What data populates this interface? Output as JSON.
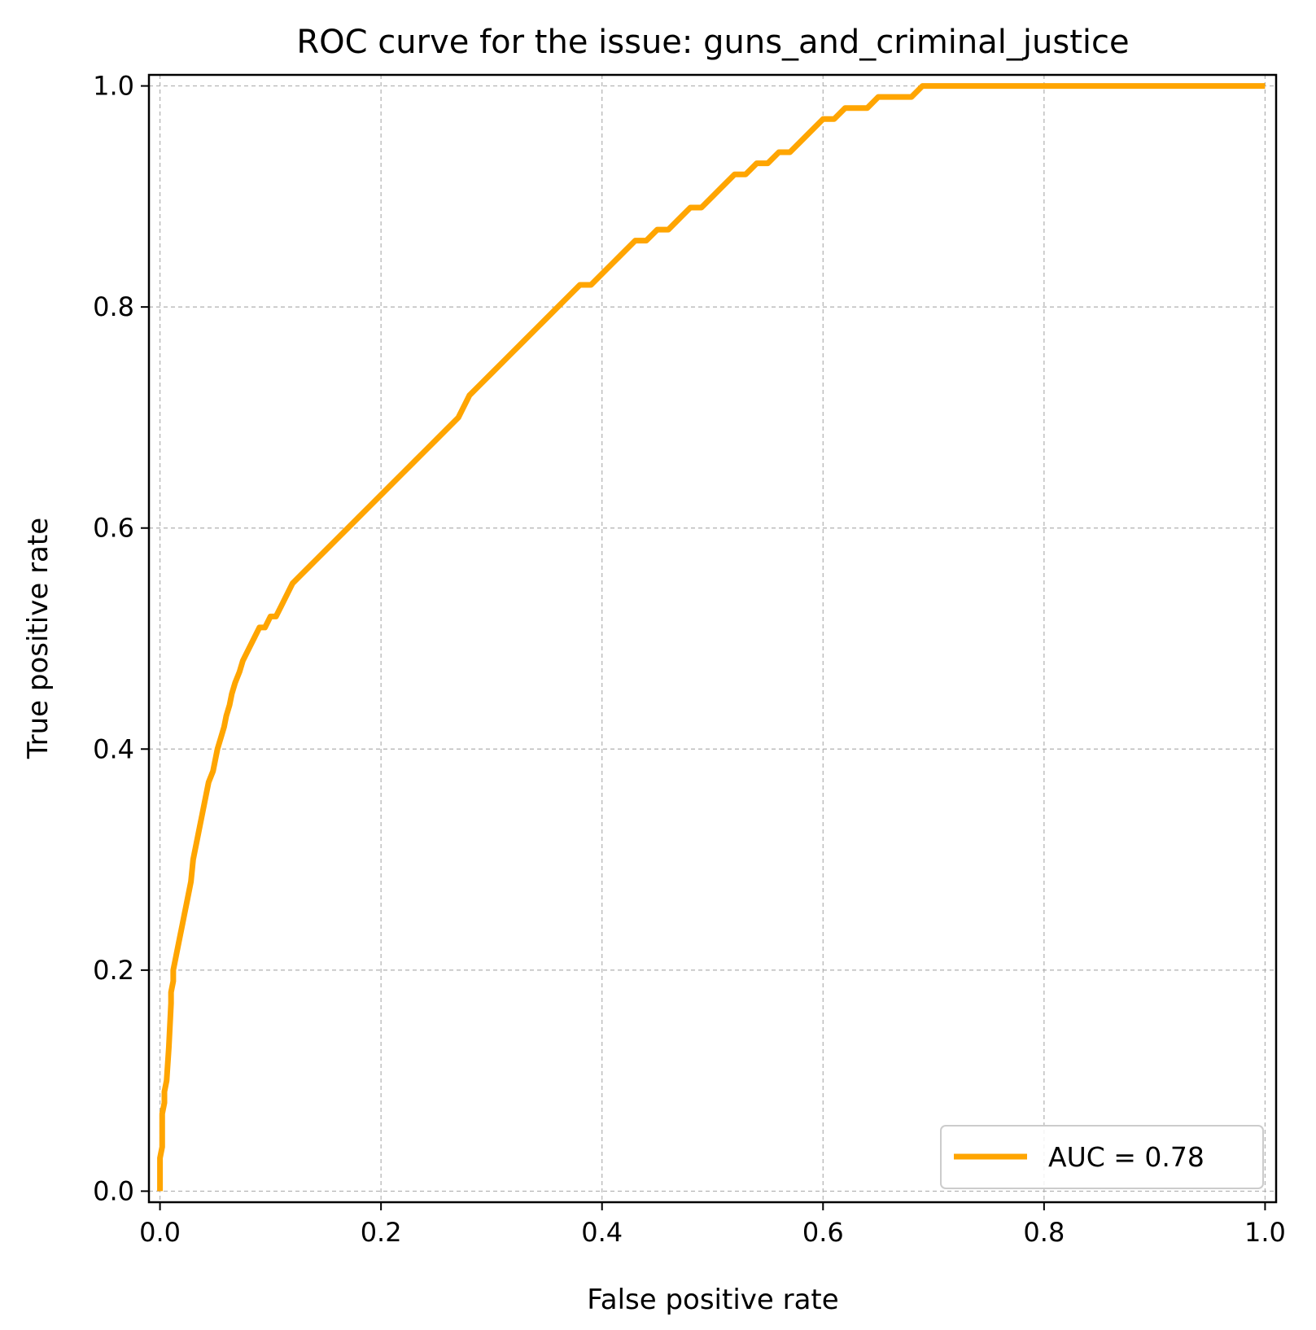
{
  "chart_data": {
    "type": "line",
    "title": "ROC curve for the issue: guns_and_criminal_justice",
    "xlabel": "False positive rate",
    "ylabel": "True positive rate",
    "xlim": [
      -0.01,
      1.01
    ],
    "ylim": [
      -0.01,
      1.01
    ],
    "xticks": [
      0.0,
      0.2,
      0.4,
      0.6,
      0.8,
      1.0
    ],
    "yticks": [
      0.0,
      0.2,
      0.4,
      0.6,
      0.8,
      1.0
    ],
    "xtick_labels": [
      "0.0",
      "0.2",
      "0.4",
      "0.6",
      "0.8",
      "1.0"
    ],
    "ytick_labels": [
      "0.0",
      "0.2",
      "0.4",
      "0.6",
      "0.8",
      "1.0"
    ],
    "grid": true,
    "legend_position": "lower right",
    "series": [
      {
        "name": "AUC = 0.78",
        "color": "#ffa500",
        "x": [
          0.0,
          0.0,
          0.002,
          0.002,
          0.004,
          0.004,
          0.006,
          0.008,
          0.01,
          0.01,
          0.012,
          0.012,
          0.014,
          0.016,
          0.018,
          0.02,
          0.022,
          0.024,
          0.028,
          0.03,
          0.034,
          0.036,
          0.038,
          0.04,
          0.042,
          0.044,
          0.048,
          0.05,
          0.052,
          0.055,
          0.058,
          0.06,
          0.063,
          0.065,
          0.068,
          0.072,
          0.075,
          0.08,
          0.085,
          0.09,
          0.095,
          0.1,
          0.105,
          0.11,
          0.115,
          0.12,
          0.13,
          0.14,
          0.15,
          0.16,
          0.17,
          0.18,
          0.19,
          0.2,
          0.21,
          0.22,
          0.23,
          0.24,
          0.25,
          0.26,
          0.27,
          0.28,
          0.29,
          0.3,
          0.31,
          0.32,
          0.33,
          0.34,
          0.35,
          0.36,
          0.37,
          0.38,
          0.39,
          0.4,
          0.41,
          0.42,
          0.43,
          0.44,
          0.45,
          0.46,
          0.47,
          0.48,
          0.49,
          0.5,
          0.51,
          0.52,
          0.53,
          0.54,
          0.55,
          0.56,
          0.57,
          0.58,
          0.59,
          0.6,
          0.61,
          0.62,
          0.63,
          0.64,
          0.65,
          0.66,
          0.67,
          0.68,
          0.69,
          0.7,
          0.71,
          0.72,
          0.73,
          0.74,
          0.75,
          0.76,
          0.78,
          0.8,
          0.82,
          0.84,
          0.86,
          0.88,
          0.9,
          0.92,
          0.94,
          0.96,
          0.98,
          1.0
        ],
        "y": [
          0.0,
          0.03,
          0.04,
          0.07,
          0.08,
          0.09,
          0.1,
          0.13,
          0.17,
          0.18,
          0.19,
          0.2,
          0.21,
          0.22,
          0.23,
          0.24,
          0.25,
          0.26,
          0.28,
          0.3,
          0.32,
          0.33,
          0.34,
          0.35,
          0.36,
          0.37,
          0.38,
          0.39,
          0.4,
          0.41,
          0.42,
          0.43,
          0.44,
          0.45,
          0.46,
          0.47,
          0.48,
          0.49,
          0.5,
          0.51,
          0.51,
          0.52,
          0.52,
          0.53,
          0.54,
          0.55,
          0.56,
          0.57,
          0.58,
          0.59,
          0.6,
          0.61,
          0.62,
          0.63,
          0.64,
          0.65,
          0.66,
          0.67,
          0.68,
          0.69,
          0.7,
          0.72,
          0.73,
          0.74,
          0.75,
          0.76,
          0.77,
          0.78,
          0.79,
          0.8,
          0.81,
          0.82,
          0.82,
          0.83,
          0.84,
          0.85,
          0.86,
          0.86,
          0.87,
          0.87,
          0.88,
          0.89,
          0.89,
          0.9,
          0.91,
          0.92,
          0.92,
          0.93,
          0.93,
          0.94,
          0.94,
          0.95,
          0.96,
          0.97,
          0.97,
          0.98,
          0.98,
          0.98,
          0.99,
          0.99,
          0.99,
          0.99,
          1.0,
          1.0,
          1.0,
          1.0,
          1.0,
          1.0,
          1.0,
          1.0,
          1.0,
          1.0,
          1.0,
          1.0,
          1.0,
          1.0,
          1.0,
          1.0,
          1.0,
          1.0,
          1.0,
          1.0
        ]
      }
    ]
  }
}
